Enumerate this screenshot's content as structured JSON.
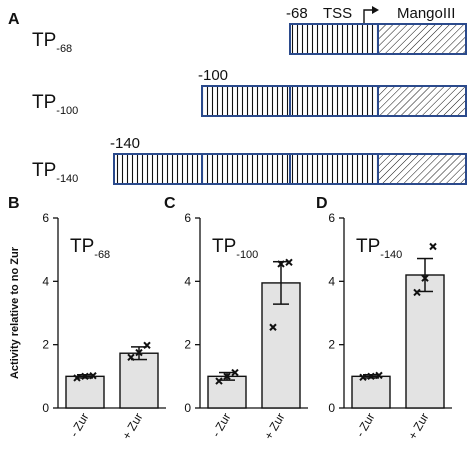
{
  "panel_a": {
    "letter": "A",
    "region_labels": {
      "tss": "TSS",
      "mango": "MangoIII"
    },
    "constructs": [
      {
        "name_main": "TP",
        "name_sub": "-68",
        "position_label": "-68",
        "promoter_segments": 1
      },
      {
        "name_main": "TP",
        "name_sub": "-100",
        "position_label": "-100",
        "promoter_segments": 2
      },
      {
        "name_main": "TP",
        "name_sub": "-140",
        "position_label": "-140",
        "promoter_segments": 3
      }
    ]
  },
  "chart_data": [
    {
      "type": "bar",
      "panel_letter": "B",
      "title_main": "TP",
      "title_sub": "-68",
      "ylabel": "Activity relative to no Zur",
      "categories": [
        "- Zur",
        "+ Zur"
      ],
      "values": [
        1.0,
        1.73
      ],
      "error": [
        0.05,
        0.2
      ],
      "points": [
        [
          0.95,
          1.0,
          1.02
        ],
        [
          1.6,
          1.75,
          1.98
        ]
      ],
      "ylim": [
        0,
        6
      ],
      "yticks": [
        "0",
        "2",
        "4",
        "6"
      ]
    },
    {
      "type": "bar",
      "panel_letter": "C",
      "title_main": "TP",
      "title_sub": "-100",
      "ylabel": "",
      "categories": [
        "- Zur",
        "+ Zur"
      ],
      "values": [
        1.0,
        3.95
      ],
      "error": [
        0.12,
        0.67
      ],
      "points": [
        [
          0.85,
          1.0,
          1.12
        ],
        [
          2.55,
          4.55,
          4.6
        ]
      ],
      "ylim": [
        0,
        6
      ],
      "yticks": [
        "0",
        "2",
        "4",
        "6"
      ]
    },
    {
      "type": "bar",
      "panel_letter": "D",
      "title_main": "TP",
      "title_sub": "-140",
      "ylabel": "",
      "categories": [
        "- Zur",
        "+ Zur"
      ],
      "values": [
        1.0,
        4.2
      ],
      "error": [
        0.05,
        0.52
      ],
      "points": [
        [
          0.97,
          1.0,
          1.03
        ],
        [
          3.65,
          4.1,
          5.1
        ]
      ],
      "ylim": [
        0,
        6
      ],
      "yticks": [
        "0",
        "2",
        "4",
        "6"
      ]
    }
  ]
}
